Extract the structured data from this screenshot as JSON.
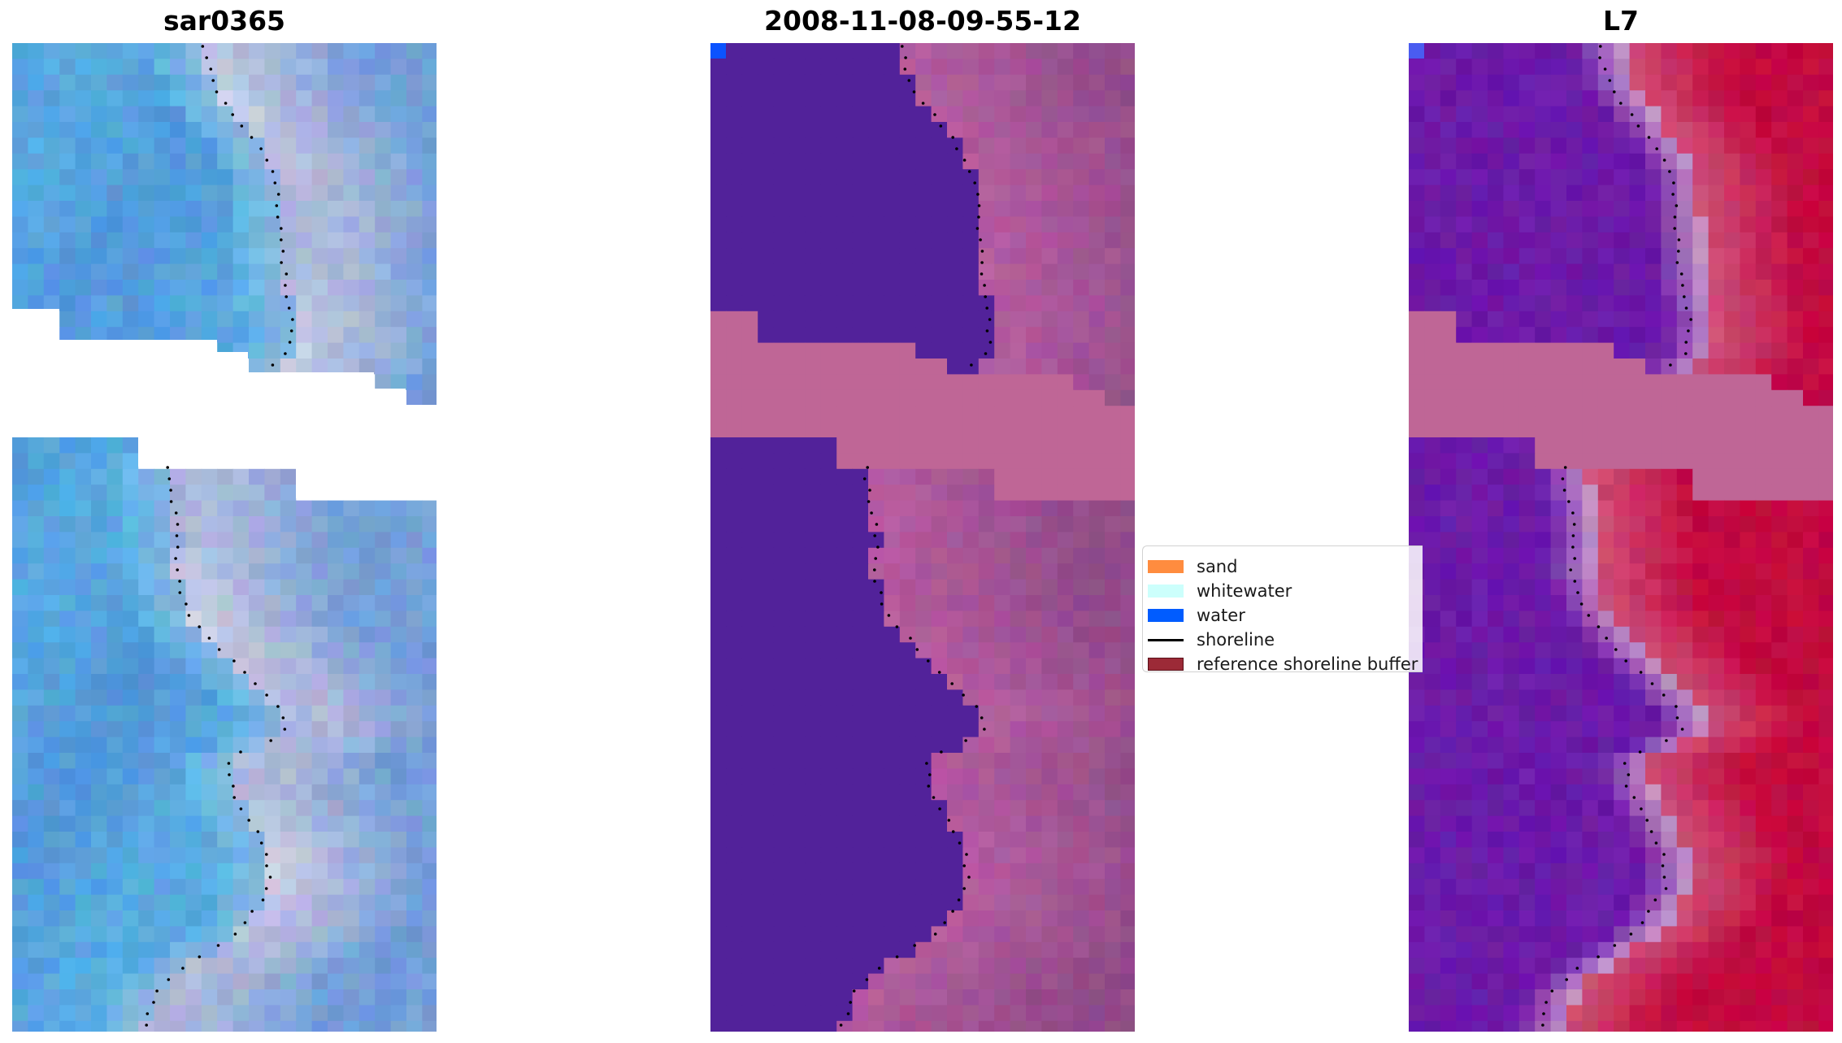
{
  "panels": [
    {
      "title": "sar0365"
    },
    {
      "title": "2008-11-08-09-55-12"
    },
    {
      "title": "L7"
    }
  ],
  "legend": {
    "items": [
      {
        "label": "sand",
        "kind": "patch",
        "color": "#ff8c3f"
      },
      {
        "label": "whitewater",
        "kind": "patch",
        "color": "#ccfffc"
      },
      {
        "label": "water",
        "kind": "patch",
        "color": "#005cff"
      },
      {
        "label": "shoreline",
        "kind": "line",
        "color": "#000000"
      },
      {
        "label": "reference shoreline buffer",
        "kind": "patch",
        "color": "#9c2a37"
      }
    ]
  },
  "colors": {
    "rgb_water": "#4f8fd6",
    "rgb_bright_water": "#5cb4e6",
    "rgb_sand": "#a9b6da",
    "rgb_white_patch": "#f2f0f6",
    "class_water": "#52229a",
    "class_sand": "#924c8a",
    "class_mask": "#bf6696",
    "class_small_water": "#0b53ff",
    "ndwi_water": "#6b1aa8",
    "ndwi_land": "#c20a40",
    "ndwi_mask": "#bf6696"
  }
}
